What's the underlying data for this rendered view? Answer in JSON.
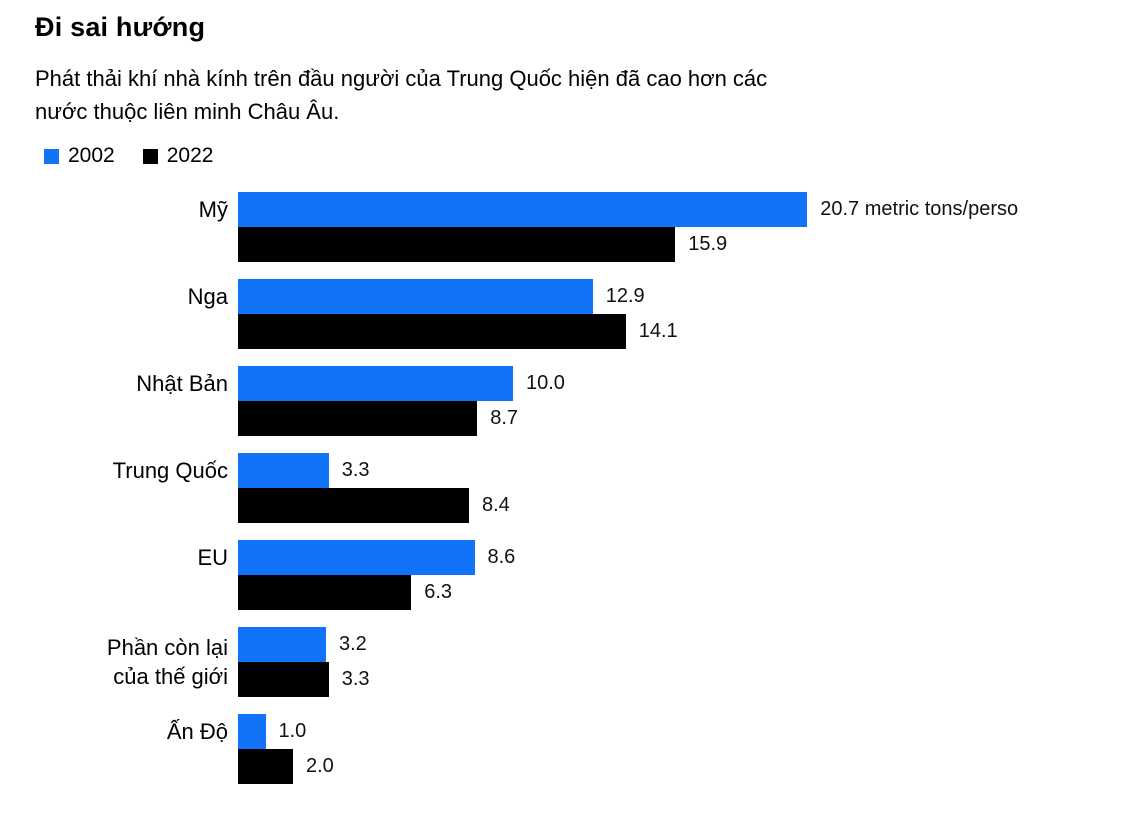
{
  "header": {
    "title": "Đi sai hướng",
    "subtitle": "Phát thải khí nhà kính trên đầu người của Trung Quốc hiện đã cao hơn các\nnước thuộc liên minh Châu Âu."
  },
  "chart_data": {
    "type": "bar",
    "orientation": "horizontal",
    "title": "Đi sai hướng",
    "subtitle": "Phát thải khí nhà kính trên đầu người của Trung Quốc hiện đã cao hơn các nước thuộc liên minh Châu Âu.",
    "categories": [
      "Mỹ",
      "Nga",
      "Nhật Bản",
      "Trung Quốc",
      "EU",
      "Phần còn lại\ncủa thế giới",
      "Ấn Độ"
    ],
    "series": [
      {
        "name": "2002",
        "color": "#1173f7",
        "values": [
          20.7,
          12.9,
          10.0,
          3.3,
          8.6,
          3.2,
          1.0
        ],
        "value_labels": [
          "20.7 metric tons/perso",
          "12.9",
          "10.0",
          "3.3",
          "8.6",
          "3.2",
          "1.0"
        ]
      },
      {
        "name": "2022",
        "color": "#000000",
        "values": [
          15.9,
          14.1,
          8.7,
          8.4,
          6.3,
          3.3,
          2.0
        ],
        "value_labels": [
          "15.9",
          "14.1",
          "8.7",
          "8.4",
          "6.3",
          "3.3",
          "2.0"
        ]
      }
    ],
    "xlim": [
      0,
      20.7
    ],
    "grid": false,
    "legend_position": "top-left",
    "value_label_position": "end-of-bar",
    "text_color": "#000000",
    "background_color": "#ffffff"
  }
}
